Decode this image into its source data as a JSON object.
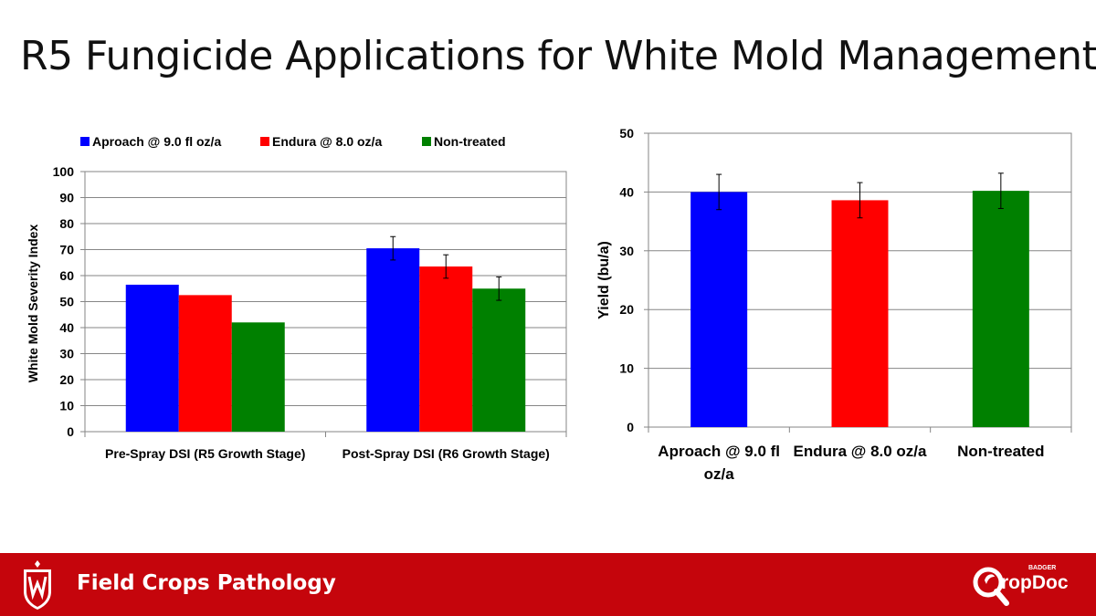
{
  "title": "R5 Fungicide Applications for White Mold Management",
  "footer": {
    "label": "Field Crops Pathology",
    "logo_badge": "BADGER",
    "logo_text": "CropDoc"
  },
  "colors": {
    "aproach": "#0000ff",
    "endura": "#ff0000",
    "nontreated": "#008000",
    "footer_bg": "#c5050c"
  },
  "chart_data": [
    {
      "type": "bar",
      "legend": [
        "Aproach @ 9.0 fl oz/a",
        "Endura @ 8.0 oz/a",
        "Non-treated"
      ],
      "legend_position": "top",
      "categories": [
        "Pre-Spray DSI (R5 Growth Stage)",
        "Post-Spray DSI (R6 Growth Stage)"
      ],
      "series": [
        {
          "name": "Aproach @ 9.0 fl oz/a",
          "values": [
            56.5,
            70.5
          ],
          "errors": [
            null,
            4.5
          ]
        },
        {
          "name": "Endura @ 8.0 oz/a",
          "values": [
            52.5,
            63.5
          ],
          "errors": [
            null,
            4.5
          ]
        },
        {
          "name": "Non-treated",
          "values": [
            42,
            55
          ],
          "errors": [
            null,
            4.5
          ]
        }
      ],
      "ylabel": "White Mold Severity Index",
      "xlabel": "",
      "ylim": [
        0,
        100
      ],
      "yticks": [
        "0",
        "10",
        "20",
        "30",
        "40",
        "50",
        "60",
        "70",
        "80",
        "90",
        "100"
      ],
      "grid": true
    },
    {
      "type": "bar",
      "categories": [
        "Aproach @ 9.0 fl oz/a",
        "Endura @ 8.0 oz/a",
        "Non-treated"
      ],
      "values": [
        40,
        38.6,
        40.2
      ],
      "errors": [
        3,
        3,
        3
      ],
      "ylabel": "Yield (bu/a)",
      "xlabel": "",
      "ylim": [
        0,
        50
      ],
      "yticks": [
        "0",
        "10",
        "20",
        "30",
        "40",
        "50"
      ],
      "grid": true
    }
  ]
}
